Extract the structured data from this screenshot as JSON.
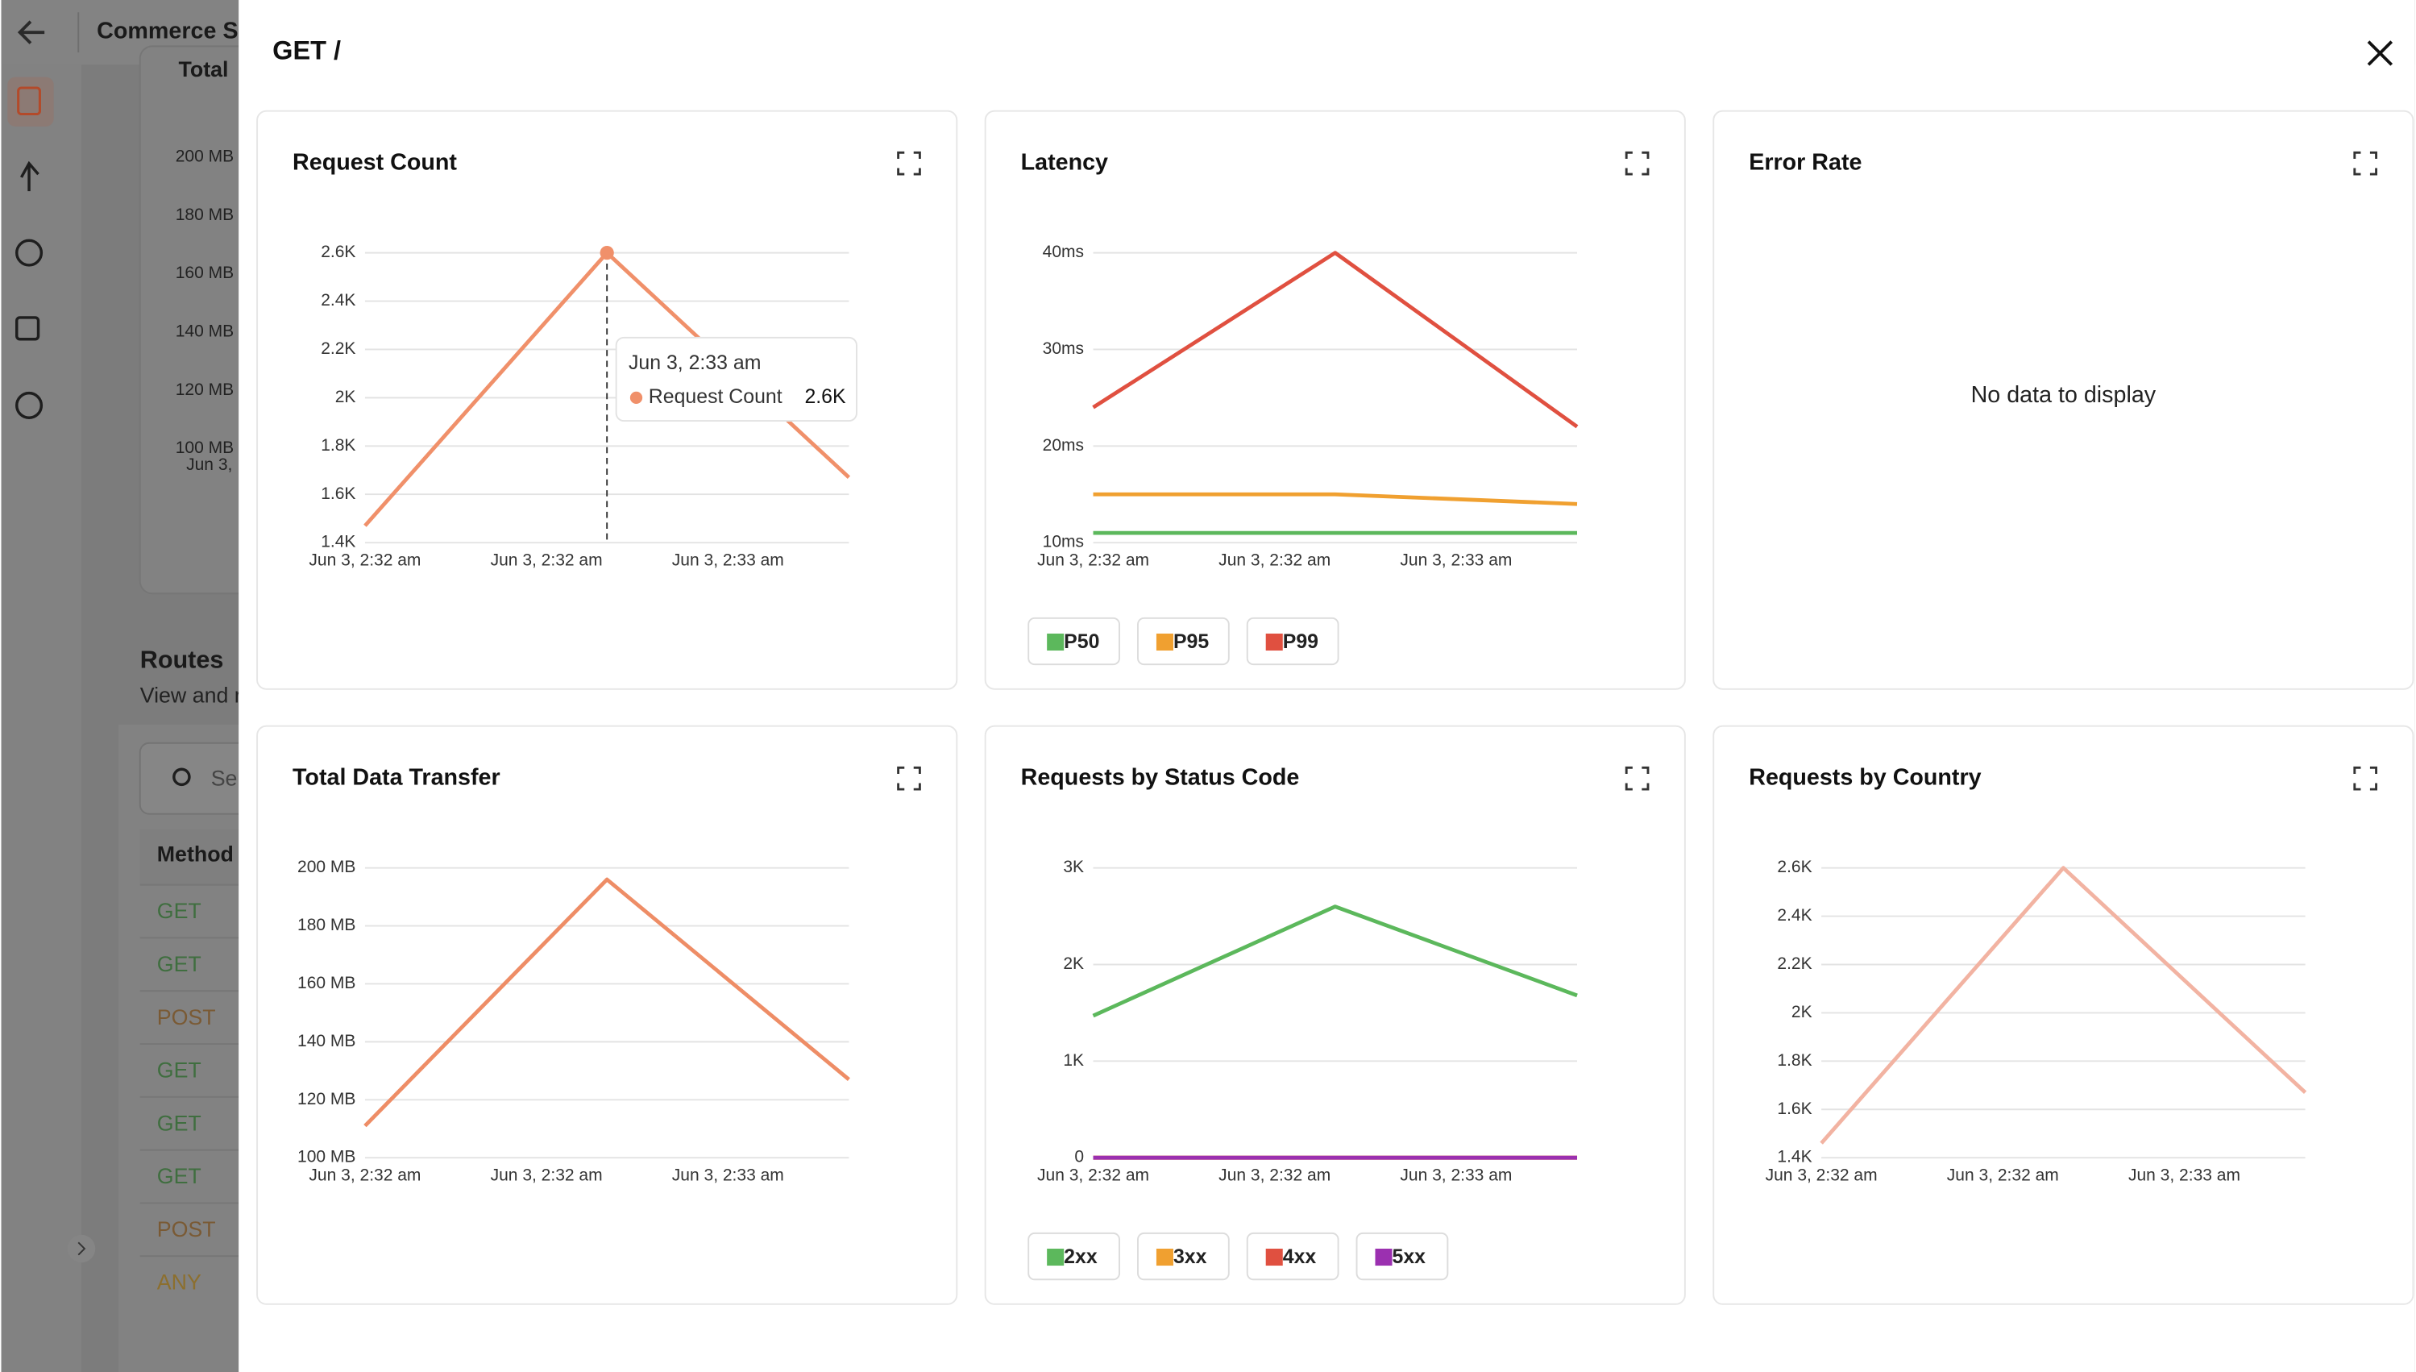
{
  "app": {
    "title": "Commerce S",
    "panel_title": "Total",
    "yticks": [
      "200 MB",
      "180 MB",
      "160 MB",
      "140 MB",
      "120 MB",
      "100 MB"
    ],
    "x_label": "Jun 3,",
    "routes_title": "Routes",
    "routes_subtitle": "View and r",
    "search_placeholder": "Se",
    "table_header": "Method",
    "methods": [
      "GET",
      "GET",
      "POST",
      "GET",
      "GET",
      "GET",
      "POST",
      "ANY"
    ]
  },
  "modal": {
    "title": "GET /"
  },
  "chart_data": [
    {
      "type": "line",
      "title": "Request Count",
      "x": [
        0,
        1,
        2
      ],
      "xlim": [
        0,
        2
      ],
      "xticks": [
        {
          "value": 0,
          "label": "Jun 3, 2:32 am"
        },
        {
          "value": 0.75,
          "label": "Jun 3, 2:32 am"
        },
        {
          "value": 1.5,
          "label": "Jun 3, 2:33 am"
        }
      ],
      "ylim": [
        1400,
        2600
      ],
      "yticks": [
        {
          "value": 1400,
          "label": "1.4K"
        },
        {
          "value": 1600,
          "label": "1.6K"
        },
        {
          "value": 1800,
          "label": "1.8K"
        },
        {
          "value": 2000,
          "label": "2K"
        },
        {
          "value": 2200,
          "label": "2.2K"
        },
        {
          "value": 2400,
          "label": "2.4K"
        },
        {
          "value": 2600,
          "label": "2.6K"
        }
      ],
      "grid": true,
      "legend": false,
      "series": [
        {
          "name": "Request Count",
          "color": "#f0906a",
          "values": [
            1470,
            2600,
            1670
          ]
        }
      ],
      "tooltip": {
        "index": 1,
        "title": "Jun 3, 2:33 am",
        "label": "2.6K"
      }
    },
    {
      "type": "line",
      "title": "Latency",
      "x": [
        0,
        1,
        2
      ],
      "xlim": [
        0,
        2
      ],
      "xticks": [
        {
          "value": 0,
          "label": "Jun 3, 2:32 am"
        },
        {
          "value": 0.75,
          "label": "Jun 3, 2:32 am"
        },
        {
          "value": 1.5,
          "label": "Jun 3, 2:33 am"
        }
      ],
      "ylim": [
        10,
        40
      ],
      "yticks": [
        {
          "value": 10,
          "label": "10ms"
        },
        {
          "value": 20,
          "label": "20ms"
        },
        {
          "value": 30,
          "label": "30ms"
        },
        {
          "value": 40,
          "label": "40ms"
        }
      ],
      "grid": true,
      "legend": true,
      "series": [
        {
          "name": "P50",
          "color": "#5cb85c",
          "values": [
            11,
            11,
            11
          ]
        },
        {
          "name": "P95",
          "color": "#f0a030",
          "values": [
            15,
            15,
            14
          ]
        },
        {
          "name": "P99",
          "color": "#e05040",
          "values": [
            24,
            40,
            22
          ]
        }
      ]
    },
    {
      "type": "line",
      "title": "Error Rate",
      "message": "No data to display"
    },
    {
      "type": "line",
      "title": "Total Data Transfer",
      "x": [
        0,
        1,
        2
      ],
      "xlim": [
        0,
        2
      ],
      "xticks": [
        {
          "value": 0,
          "label": "Jun 3, 2:32 am"
        },
        {
          "value": 0.75,
          "label": "Jun 3, 2:32 am"
        },
        {
          "value": 1.5,
          "label": "Jun 3, 2:33 am"
        }
      ],
      "ylim": [
        100,
        200
      ],
      "yticks": [
        {
          "value": 100,
          "label": "100 MB"
        },
        {
          "value": 120,
          "label": "120 MB"
        },
        {
          "value": 140,
          "label": "140 MB"
        },
        {
          "value": 160,
          "label": "160 MB"
        },
        {
          "value": 180,
          "label": "180 MB"
        },
        {
          "value": 200,
          "label": "200 MB"
        }
      ],
      "grid": true,
      "legend": false,
      "series": [
        {
          "color": "#ee8d66",
          "values": [
            111,
            196,
            127
          ]
        }
      ]
    },
    {
      "type": "line",
      "title": "Requests by Status Code",
      "x": [
        0,
        1,
        2
      ],
      "xlim": [
        0,
        2
      ],
      "xticks": [
        {
          "value": 0,
          "label": "Jun 3, 2:32 am"
        },
        {
          "value": 0.75,
          "label": "Jun 3, 2:32 am"
        },
        {
          "value": 1.5,
          "label": "Jun 3, 2:33 am"
        }
      ],
      "ylim": [
        0,
        3000
      ],
      "yticks": [
        0,
        {
          "value": 1000,
          "label": "1K"
        },
        {
          "value": 2000,
          "label": "2K"
        },
        {
          "value": 3000,
          "label": "3K"
        }
      ],
      "grid": true,
      "legend": true,
      "series": [
        {
          "name": "2xx",
          "color": "#5cb85c",
          "values": [
            1470,
            2600,
            1680
          ]
        },
        {
          "name": "3xx",
          "color": "#f0a030",
          "values": [
            0,
            0,
            0
          ]
        },
        {
          "name": "4xx",
          "color": "#e05040",
          "values": [
            0,
            0,
            0
          ]
        },
        {
          "name": "5xx",
          "color": "#9b30b0",
          "values": [
            0,
            0,
            0
          ]
        }
      ]
    },
    {
      "type": "line",
      "title": "Requests by Country",
      "x": [
        0,
        1,
        2
      ],
      "xlim": [
        0,
        2
      ],
      "xticks": [
        {
          "value": 0,
          "label": "Jun 3, 2:32 am"
        },
        {
          "value": 0.75,
          "label": "Jun 3, 2:32 am"
        },
        {
          "value": 1.5,
          "label": "Jun 3, 2:33 am"
        }
      ],
      "ylim": [
        1400,
        2600
      ],
      "yticks": [
        {
          "value": 1400,
          "label": "1.4K"
        },
        {
          "value": 1600,
          "label": "1.6K"
        },
        {
          "value": 1800,
          "label": "1.8K"
        },
        {
          "value": 2000,
          "label": "2K"
        },
        {
          "value": 2200,
          "label": "2.2K"
        },
        {
          "value": 2400,
          "label": "2.4K"
        },
        {
          "value": 2600,
          "label": "2.6K"
        }
      ],
      "grid": true,
      "legend": false,
      "series": [
        {
          "color": "#f2b3a2",
          "values": [
            1460,
            2600,
            1670
          ]
        }
      ]
    }
  ]
}
